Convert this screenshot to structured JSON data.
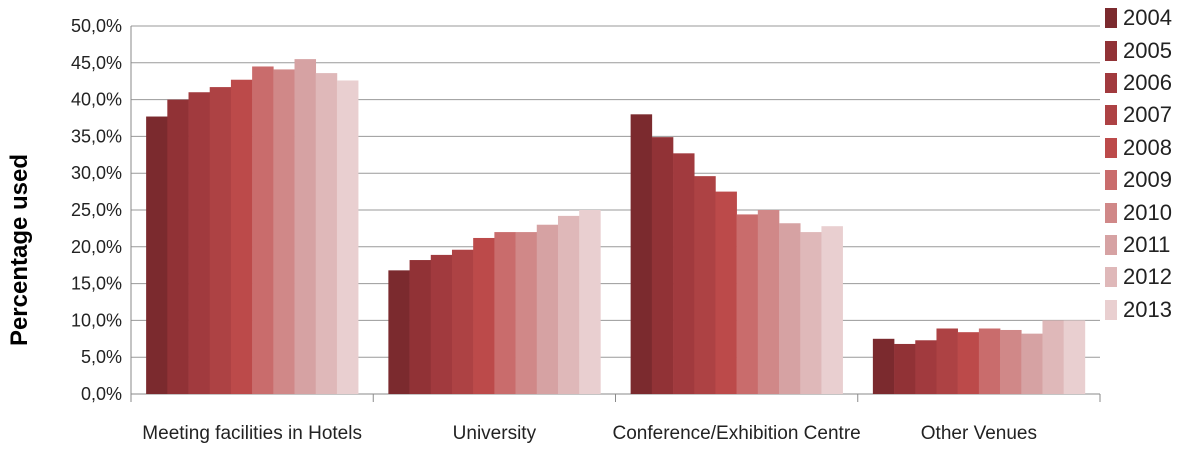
{
  "chart_data": {
    "type": "bar",
    "ylabel": "Percentage used",
    "ylim": [
      0,
      50
    ],
    "yticks": [
      "0,0%",
      "5,0%",
      "10,0%",
      "15,0%",
      "20,0%",
      "25,0%",
      "30,0%",
      "35,0%",
      "40,0%",
      "45,0%",
      "50,0%"
    ],
    "categories": [
      "Meeting facilities in Hotels",
      "University",
      "Conference/Exhibition Centre",
      "Other Venues"
    ],
    "legend_position": "right",
    "grid": true,
    "series": [
      {
        "name": "2004",
        "color": "#7b2a2e",
        "values": [
          37.7,
          16.8,
          38.0,
          7.5
        ]
      },
      {
        "name": "2005",
        "color": "#913236",
        "values": [
          40.0,
          18.2,
          34.9,
          6.8
        ]
      },
      {
        "name": "2006",
        "color": "#a13a3e",
        "values": [
          41.0,
          18.9,
          32.7,
          7.3
        ]
      },
      {
        "name": "2007",
        "color": "#ad4244",
        "values": [
          41.7,
          19.6,
          29.6,
          8.9
        ]
      },
      {
        "name": "2008",
        "color": "#bc4a4a",
        "values": [
          42.7,
          21.2,
          27.5,
          8.4
        ]
      },
      {
        "name": "2009",
        "color": "#c96c6c",
        "values": [
          44.5,
          22.0,
          24.4,
          8.9
        ]
      },
      {
        "name": "2010",
        "color": "#d08888",
        "values": [
          44.1,
          22.0,
          25.0,
          8.7
        ]
      },
      {
        "name": "2011",
        "color": "#d6a2a3",
        "values": [
          45.5,
          23.0,
          23.2,
          8.2
        ]
      },
      {
        "name": "2012",
        "color": "#dfb8b9",
        "values": [
          43.6,
          24.2,
          22.0,
          10.0
        ]
      },
      {
        "name": "2013",
        "color": "#e9cfd0",
        "values": [
          42.6,
          25.0,
          22.8,
          10.0
        ]
      }
    ]
  }
}
